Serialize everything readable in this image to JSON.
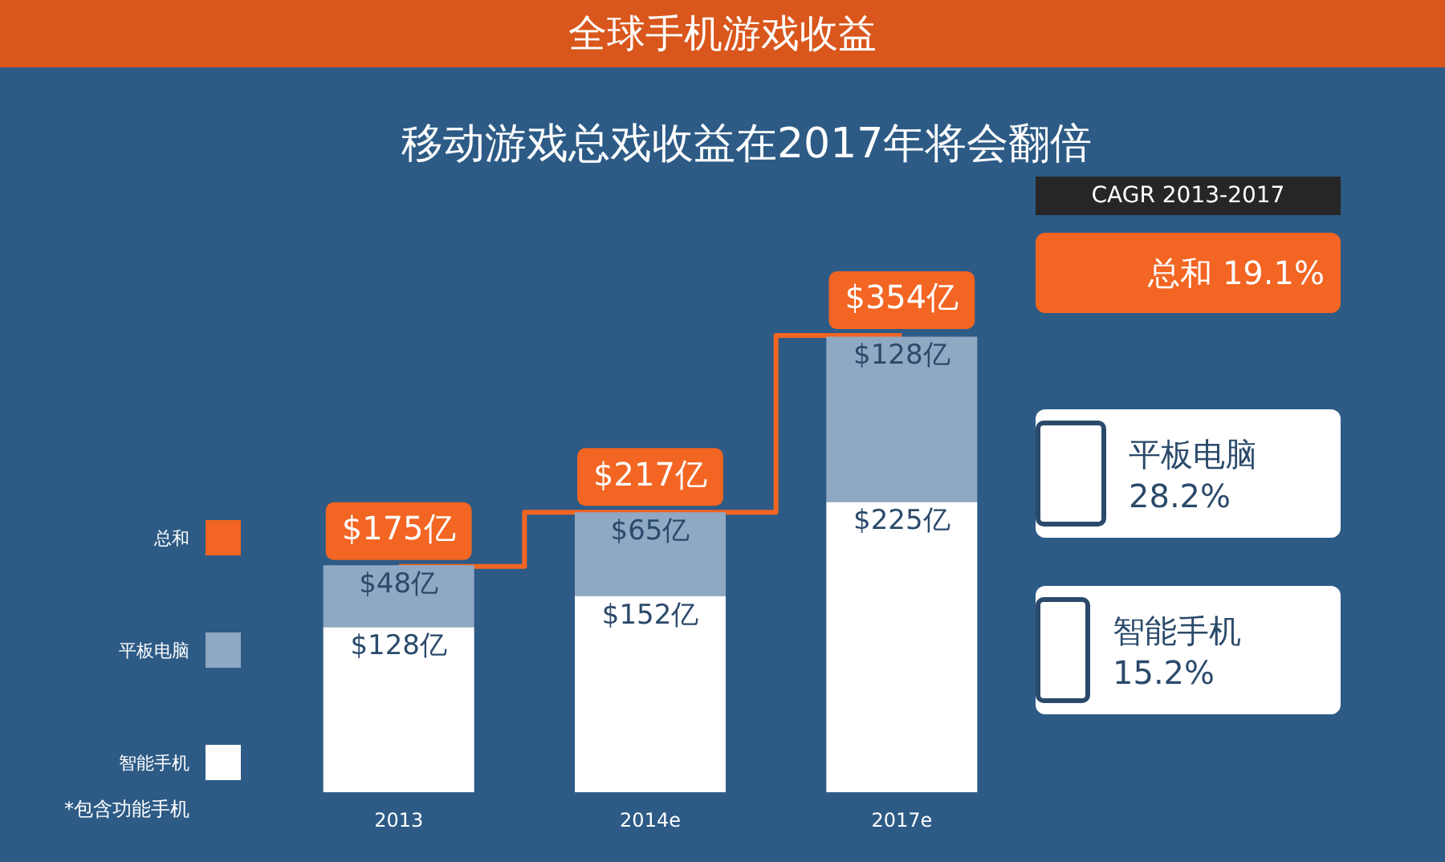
{
  "chart_data": {
    "type": "bar",
    "title": "全球手机游戏收益",
    "subtitle": "移动游戏总戏收益在2017年将会翻倍",
    "categories": [
      "2013",
      "2014e",
      "2017e"
    ],
    "stacked": true,
    "legend": "left",
    "tick_labels": "x",
    "grid": false,
    "marker": "none",
    "series": [
      {
        "name": "智能手机",
        "color": "#ffffff",
        "values": [
          128,
          152,
          225
        ],
        "value_labels": [
          "$128亿",
          "$152亿",
          "$225亿"
        ]
      },
      {
        "name": "平板电脑",
        "color": "#8fa8c4",
        "values": [
          48,
          65,
          128
        ],
        "value_labels": [
          "$48亿",
          "$65亿",
          "$128亿"
        ]
      },
      {
        "name": "总和",
        "type": "step",
        "color": "#f26522",
        "values": [
          175,
          217,
          354
        ],
        "value_labels": [
          "$175亿",
          "$217亿",
          "$354亿"
        ]
      }
    ],
    "annotations": [
      "*包含功能手机",
      "CAGR 2013-2017",
      "总和 19.1%",
      "平板电脑 28.2%",
      "智能手机 15.2%"
    ]
  }
}
